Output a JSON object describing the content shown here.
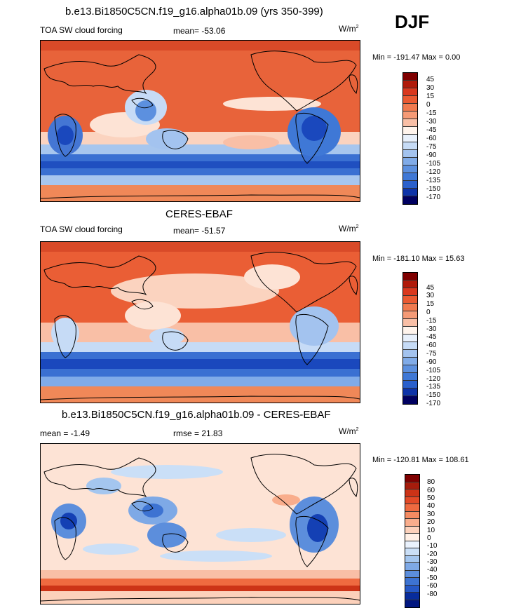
{
  "season": "DJF",
  "colors": {
    "diverging21": [
      "#7f0000",
      "#b01a0a",
      "#d9381e",
      "#ea5a32",
      "#f07a4f",
      "#f59a76",
      "#f9bfa6",
      "#fde0d2",
      "#fff4ec",
      "#e8f0fb",
      "#c6dbf6",
      "#a3c3ef",
      "#80abe8",
      "#5c90df",
      "#3f78d6",
      "#2a60cc",
      "#1a48bd",
      "#0d33a8",
      "#061f8e",
      "#03107a",
      "#000060"
    ],
    "diff": [
      "#7f0000",
      "#a61c0c",
      "#cc3317",
      "#e34a27",
      "#ef6a40",
      "#f58b62",
      "#f9ad8c",
      "#fcd1bb",
      "#fff0e6",
      "#eaf2fd",
      "#cadff7",
      "#a4c6ef",
      "#7ea9e6",
      "#5c8edc",
      "#3d73d2",
      "#2658c6",
      "#1440b4",
      "#082c9c",
      "#011680"
    ]
  },
  "panels": [
    {
      "id": "model",
      "title": "b.e13.Bi1850C5CN.f19_g16.alpha01b.09 (yrs 350-399)",
      "left_label": "TOA SW cloud forcing",
      "stat_label": "mean=",
      "stat_value": "-53.06",
      "units": "W/m",
      "units_sup": "2",
      "min_max": "Min = -191.47 Max =   0.00",
      "colorbar_ticks": [
        "45",
        "30",
        "15",
        "0",
        "-15",
        "-30",
        "-45",
        "-60",
        "-75",
        "-90",
        "-105",
        "-120",
        "-135",
        "-150",
        "-170"
      ]
    },
    {
      "id": "obs",
      "title": "CERES-EBAF",
      "left_label": "TOA SW cloud forcing",
      "stat_label": "mean=",
      "stat_value": "-51.57",
      "units": "W/m",
      "units_sup": "2",
      "min_max": "Min = -181.10 Max = 15.63",
      "colorbar_ticks": [
        "45",
        "30",
        "15",
        "0",
        "-15",
        "-30",
        "-45",
        "-60",
        "-75",
        "-90",
        "-105",
        "-120",
        "-135",
        "-150",
        "-170"
      ]
    },
    {
      "id": "diff",
      "title": "b.e13.Bi1850C5CN.f19_g16.alpha01b.09 - CERES-EBAF",
      "left_label": "mean =  -1.49",
      "stat_label": "rmse =",
      "stat_value": "21.83",
      "units": "W/m",
      "units_sup": "2",
      "min_max": "Min = -120.81 Max = 108.61",
      "colorbar_ticks": [
        "80",
        "60",
        "50",
        "40",
        "30",
        "20",
        "10",
        "0",
        "-10",
        "-20",
        "-30",
        "-40",
        "-50",
        "-60",
        "-80"
      ]
    }
  ]
}
